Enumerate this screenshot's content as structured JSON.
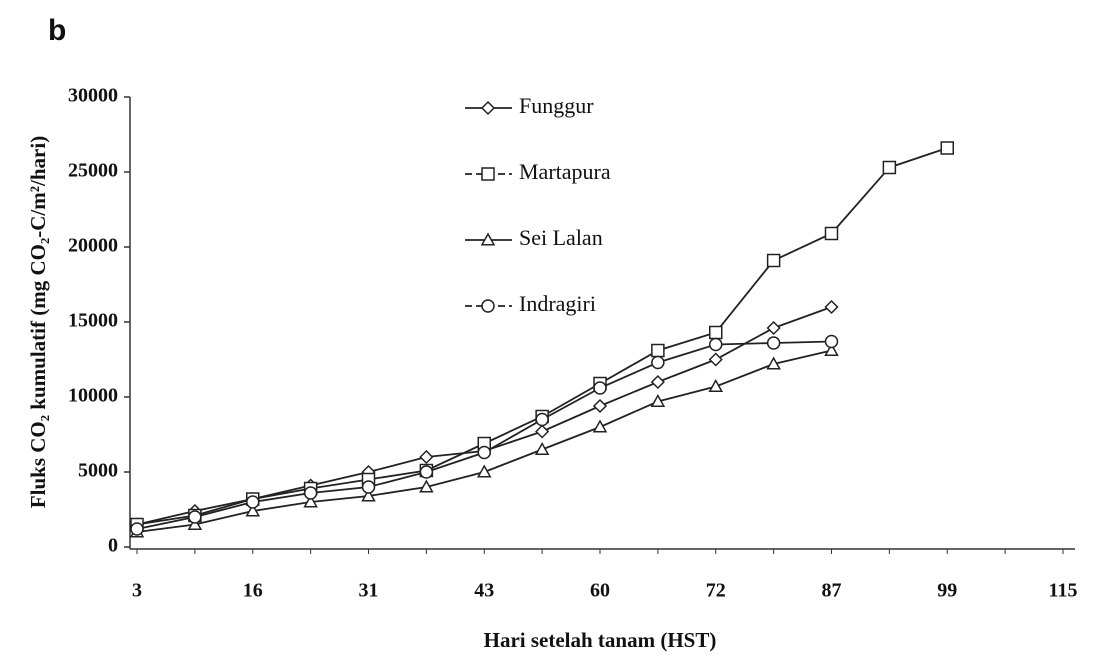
{
  "chart_data": {
    "type": "line",
    "panel_label": "b",
    "x_label": "Hari setelah tanam (HST)",
    "y_label": "Fluks CO₂ kumulatif (mg CO₂-C/m²/hari)",
    "categories": [
      "3",
      null,
      "16",
      null,
      "31",
      null,
      "43",
      null,
      "60",
      null,
      "72",
      null,
      "87",
      null,
      "99",
      null,
      "115"
    ],
    "ylim": [
      0,
      30000
    ],
    "yticks": [
      0,
      5000,
      10000,
      15000,
      20000,
      25000,
      30000
    ],
    "grid": false,
    "legend": "top",
    "series": [
      {
        "name": "Funggur",
        "color": "#222222",
        "marker": "diamond",
        "dash": "solid",
        "values": [
          1500,
          2400,
          3200,
          4100,
          5000,
          6000,
          6400,
          7700,
          9400,
          11000,
          12500,
          14600,
          16000,
          null,
          null,
          null,
          null
        ]
      },
      {
        "name": "Martapura",
        "color": "#222222",
        "marker": "square",
        "dash": "dashed",
        "values": [
          1500,
          2100,
          3200,
          3900,
          4500,
          5100,
          6900,
          8700,
          10900,
          13100,
          14300,
          19100,
          20900,
          25300,
          26600,
          null,
          null
        ]
      },
      {
        "name": "Sei Lalan",
        "color": "#222222",
        "marker": "triangle",
        "dash": "solid",
        "values": [
          1000,
          1500,
          2400,
          3000,
          3400,
          4000,
          5000,
          6500,
          8000,
          9700,
          10700,
          12200,
          13100,
          null,
          null,
          null,
          null
        ]
      },
      {
        "name": "Indragiri",
        "color": "#222222",
        "marker": "circle",
        "dash": "dashed",
        "values": [
          1200,
          2000,
          3000,
          3600,
          4000,
          5000,
          6300,
          8500,
          10600,
          12300,
          13500,
          13600,
          13700,
          null,
          null,
          null,
          null
        ]
      }
    ]
  }
}
